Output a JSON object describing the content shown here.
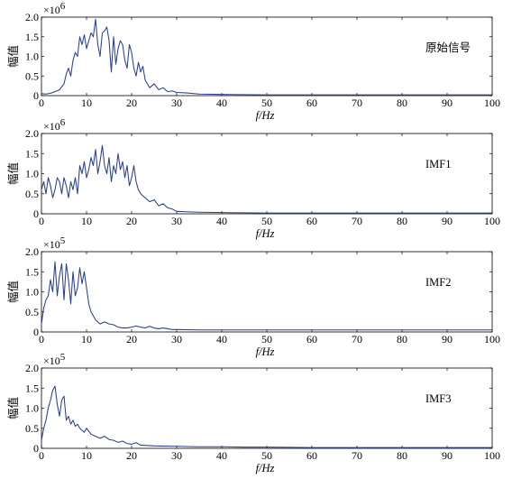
{
  "panels_layout": "4 stacked panels, shared x-axis range",
  "chart_data": [
    {
      "type": "line",
      "annotation": "原始信号",
      "xlabel": "f/Hz",
      "ylabel": "幅值",
      "y_multiplier": "×10",
      "y_exponent": "6",
      "xlim": [
        0,
        100
      ],
      "ylim": [
        0,
        2.0
      ],
      "xticks": [
        "0",
        "10",
        "20",
        "30",
        "40",
        "50",
        "60",
        "70",
        "80",
        "90",
        "100"
      ],
      "yticks": [
        "0",
        "0.5",
        "1.0",
        "1.5",
        "2.0"
      ],
      "line_color": "#2c3f8f",
      "grid": false,
      "series": [
        {
          "x": [
            0,
            1,
            2,
            3,
            4,
            5,
            5.5,
            6,
            6.5,
            7,
            7.5,
            8,
            8.5,
            9,
            9.5,
            10,
            10.5,
            11,
            11.5,
            12,
            12.5,
            13,
            13.5,
            14,
            14.5,
            15,
            15.5,
            16,
            16.5,
            17,
            17.5,
            18,
            18.5,
            19,
            19.5,
            20,
            20.5,
            21,
            21.5,
            22,
            22.5,
            23,
            24,
            25,
            26,
            27,
            28,
            29,
            30,
            32,
            35,
            40,
            50,
            60,
            70,
            80,
            90,
            100
          ],
          "y": [
            0.05,
            0.04,
            0.06,
            0.1,
            0.15,
            0.3,
            0.55,
            0.7,
            0.5,
            0.9,
            1.1,
            1.0,
            1.5,
            1.3,
            1.55,
            1.2,
            1.4,
            1.6,
            1.5,
            1.95,
            1.3,
            1.0,
            1.6,
            1.65,
            1.75,
            1.4,
            0.6,
            1.5,
            0.8,
            1.2,
            1.4,
            1.3,
            0.9,
            0.7,
            1.3,
            1.1,
            0.7,
            0.5,
            0.85,
            0.6,
            0.75,
            0.4,
            0.2,
            0.3,
            0.15,
            0.2,
            0.1,
            0.12,
            0.08,
            0.07,
            0.04,
            0.03,
            0.02,
            0.02,
            0.02,
            0.02,
            0.02,
            0.02
          ]
        }
      ]
    },
    {
      "type": "line",
      "annotation": "IMF1",
      "xlabel": "f/Hz",
      "ylabel": "幅值",
      "y_multiplier": "×10",
      "y_exponent": "6",
      "xlim": [
        0,
        100
      ],
      "ylim": [
        0,
        2.0
      ],
      "xticks": [
        "0",
        "10",
        "20",
        "30",
        "40",
        "50",
        "60",
        "70",
        "80",
        "90",
        "100"
      ],
      "yticks": [
        "0",
        "0.5",
        "1.0",
        "1.5",
        "2.0"
      ],
      "line_color": "#2c3f8f",
      "grid": false,
      "series": [
        {
          "x": [
            0,
            0.5,
            1,
            1.5,
            2,
            2.5,
            3,
            3.5,
            4,
            4.5,
            5,
            5.5,
            6,
            6.5,
            7,
            7.5,
            8,
            8.5,
            9,
            9.5,
            10,
            10.5,
            11,
            11.5,
            12,
            12.5,
            13,
            13.5,
            14,
            14.5,
            15,
            15.5,
            16,
            16.5,
            17,
            17.5,
            18,
            18.5,
            19,
            19.5,
            20,
            20.5,
            21,
            21.5,
            22,
            23,
            24,
            25,
            26,
            27,
            28,
            29,
            30,
            32,
            35,
            40,
            50,
            60,
            70,
            80,
            90,
            100
          ],
          "y": [
            0.6,
            0.8,
            0.5,
            0.9,
            0.7,
            0.4,
            0.6,
            0.9,
            0.8,
            0.5,
            0.9,
            0.7,
            0.4,
            0.8,
            0.6,
            0.9,
            0.5,
            1.2,
            1.0,
            1.3,
            0.9,
            1.1,
            1.4,
            1.2,
            1.6,
            1.0,
            1.3,
            1.7,
            1.2,
            1.0,
            1.4,
            0.8,
            1.2,
            1.0,
            1.5,
            1.1,
            1.3,
            0.9,
            1.2,
            0.7,
            0.9,
            1.2,
            0.8,
            0.6,
            0.5,
            0.4,
            0.3,
            0.35,
            0.2,
            0.25,
            0.15,
            0.12,
            0.06,
            0.05,
            0.04,
            0.03,
            0.02,
            0.02,
            0.02,
            0.02,
            0.02,
            0.02
          ]
        }
      ]
    },
    {
      "type": "line",
      "annotation": "IMF2",
      "xlabel": "f/Hz",
      "ylabel": "幅值",
      "y_multiplier": "×10",
      "y_exponent": "5",
      "xlim": [
        0,
        100
      ],
      "ylim": [
        0,
        2.0
      ],
      "xticks": [
        "0",
        "10",
        "20",
        "30",
        "40",
        "50",
        "60",
        "70",
        "80",
        "90",
        "100"
      ],
      "yticks": [
        "0",
        "0.5",
        "1.0",
        "1.5",
        "2.0"
      ],
      "line_color": "#2c3f8f",
      "grid": false,
      "series": [
        {
          "x": [
            0,
            0.5,
            1,
            1.5,
            2,
            2.5,
            3,
            3.5,
            4,
            4.5,
            5,
            5.5,
            6,
            6.5,
            7,
            7.5,
            8,
            8.5,
            9,
            9.5,
            10,
            10.5,
            11,
            12,
            13,
            14,
            15,
            16,
            17,
            18,
            19,
            20,
            21,
            22,
            23,
            24,
            25,
            26,
            27,
            28,
            29,
            30,
            35,
            40,
            50,
            60,
            70,
            80,
            90,
            100
          ],
          "y": [
            0.2,
            0.6,
            0.8,
            0.9,
            1.3,
            1.0,
            1.75,
            0.9,
            1.4,
            1.7,
            0.8,
            1.7,
            1.3,
            0.7,
            1.5,
            0.9,
            1.1,
            1.6,
            1.2,
            1.5,
            1.1,
            0.7,
            0.5,
            0.3,
            0.2,
            0.25,
            0.2,
            0.18,
            0.12,
            0.1,
            0.1,
            0.12,
            0.15,
            0.12,
            0.1,
            0.14,
            0.1,
            0.08,
            0.1,
            0.08,
            0.06,
            0.06,
            0.05,
            0.05,
            0.05,
            0.05,
            0.05,
            0.05,
            0.05,
            0.05
          ]
        }
      ]
    },
    {
      "type": "line",
      "annotation": "IMF3",
      "xlabel": "f/Hz",
      "ylabel": "幅值",
      "y_multiplier": "×10",
      "y_exponent": "5",
      "xlim": [
        0,
        100
      ],
      "ylim": [
        0,
        2.0
      ],
      "xticks": [
        "0",
        "10",
        "20",
        "30",
        "40",
        "50",
        "60",
        "70",
        "80",
        "90",
        "100"
      ],
      "yticks": [
        "0",
        "0.5",
        "1.0",
        "1.5",
        "2.0"
      ],
      "line_color": "#2c3f8f",
      "grid": false,
      "series": [
        {
          "x": [
            0,
            0.5,
            1,
            1.5,
            2,
            2.5,
            3,
            3.5,
            4,
            4.5,
            5,
            5.5,
            6,
            6.5,
            7,
            7.5,
            8,
            8.5,
            9,
            9.5,
            10,
            11,
            12,
            13,
            14,
            15,
            16,
            17,
            18,
            19,
            20,
            21,
            22,
            25,
            30,
            35,
            40,
            45,
            50,
            60,
            70,
            80,
            90,
            100
          ],
          "y": [
            0.2,
            0.5,
            0.7,
            1.0,
            1.2,
            1.45,
            1.55,
            1.1,
            0.8,
            1.2,
            1.3,
            0.7,
            0.8,
            0.6,
            0.7,
            0.55,
            0.6,
            0.5,
            0.45,
            0.4,
            0.5,
            0.35,
            0.3,
            0.25,
            0.3,
            0.22,
            0.2,
            0.15,
            0.18,
            0.12,
            0.1,
            0.14,
            0.08,
            0.06,
            0.05,
            0.04,
            0.04,
            0.03,
            0.03,
            0.02,
            0.02,
            0.02,
            0.02,
            0.02
          ]
        }
      ]
    }
  ]
}
